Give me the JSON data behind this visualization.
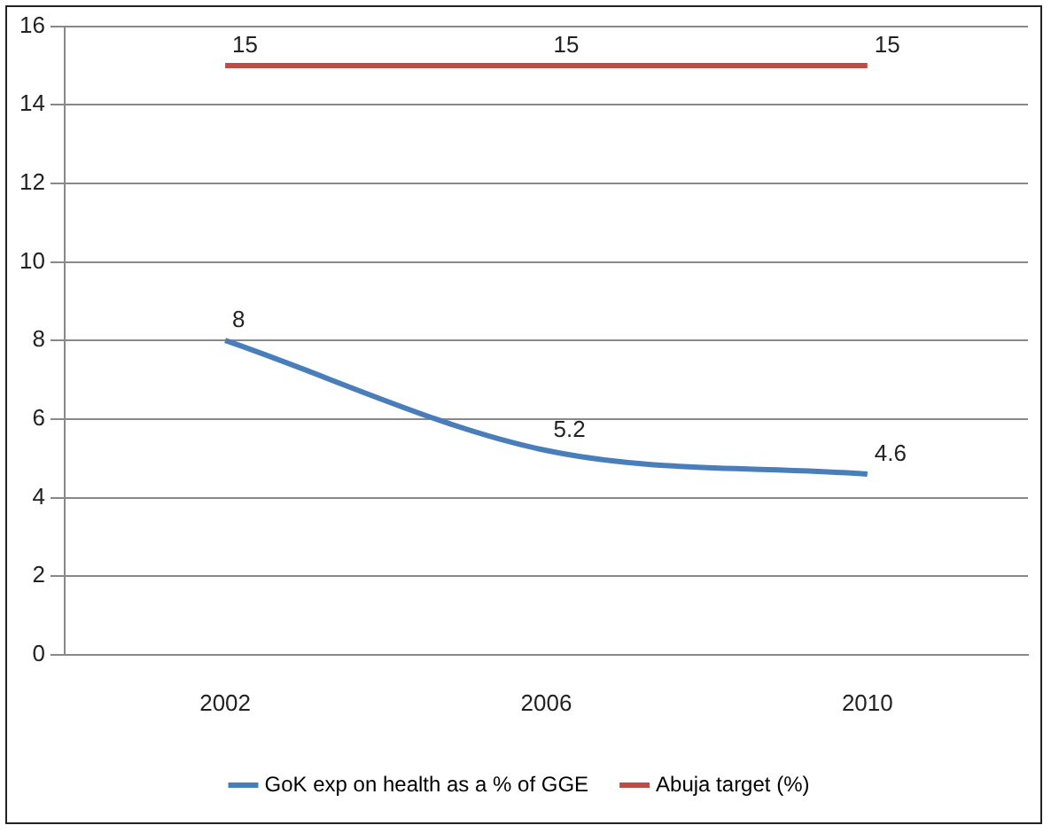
{
  "chart_data": {
    "type": "line",
    "categories": [
      "2002",
      "2006",
      "2010"
    ],
    "series": [
      {
        "name": "GoK exp on health as a % of GGE",
        "color": "#4a7ebb",
        "values": [
          8,
          5.2,
          4.6
        ]
      },
      {
        "name": "Abuja target (%)",
        "color": "#be4b48",
        "values": [
          15,
          15,
          15
        ]
      }
    ],
    "ylim": [
      0,
      16
    ],
    "yticks": [
      0,
      2,
      4,
      6,
      8,
      10,
      12,
      14,
      16
    ],
    "grid": "y",
    "legend": "bottom",
    "marker": "none",
    "line_style": "solid",
    "data_labels": true
  }
}
